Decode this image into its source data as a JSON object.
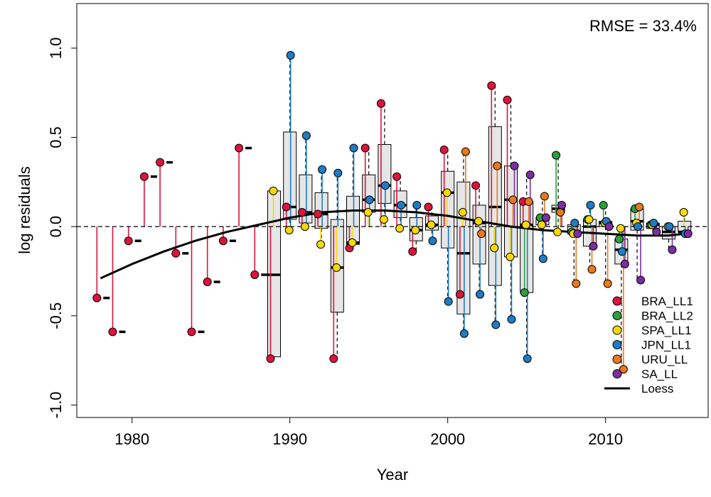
{
  "chart_data": {
    "type": "scatter",
    "title": "",
    "annotation": "RMSE = 33.4%",
    "xlabel": "Year",
    "ylabel": "log residuals",
    "xlim": [
      1976.5,
      2016.5
    ],
    "ylim": [
      -1.07,
      1.25
    ],
    "x_ticks": [
      1980,
      1990,
      2000,
      2010
    ],
    "y_ticks": [
      -1.0,
      -0.5,
      0.0,
      0.5,
      1.0
    ],
    "y_tick_labels": [
      "-1.0",
      "-0.5",
      "0.0",
      "0.5",
      "1.0"
    ],
    "zero_line": true,
    "legend_position": "bottom-right",
    "colors": {
      "BRA_LL1": "#dc143c",
      "BRA_LL2": "#2e9e3e",
      "SPA_LL1": "#f5d80b",
      "JPN_LL1": "#1f7cc4",
      "URU_LL": "#e8791e",
      "SA_LL": "#7b2ea0",
      "Loess": "#000000",
      "box_fill": "#e6e6e6"
    },
    "legend": [
      {
        "name": "BRA_LL1",
        "kind": "point"
      },
      {
        "name": "BRA_LL2",
        "kind": "point"
      },
      {
        "name": "SPA_LL1",
        "kind": "point"
      },
      {
        "name": "JPN_LL1",
        "kind": "point"
      },
      {
        "name": "URU_LL",
        "kind": "point"
      },
      {
        "name": "SA_LL",
        "kind": "point"
      },
      {
        "name": "Loess",
        "kind": "line"
      }
    ],
    "series": [
      {
        "name": "BRA_LL1",
        "x": [
          1978,
          1979,
          1980,
          1981,
          1982,
          1983,
          1984,
          1985,
          1986,
          1987,
          1988,
          1989,
          1990,
          1991,
          1992,
          1993,
          1994,
          1995,
          1996,
          1997,
          1998,
          1999,
          2000,
          2001,
          2002,
          2003,
          2004,
          2005
        ],
        "y": [
          -0.4,
          -0.59,
          -0.08,
          0.28,
          0.36,
          -0.15,
          -0.59,
          -0.31,
          -0.08,
          0.44,
          -0.27,
          -0.74,
          0.11,
          0.08,
          0.07,
          -0.74,
          -0.12,
          0.44,
          0.69,
          0.28,
          -0.14,
          0.11,
          0.43,
          -0.38,
          0.23,
          0.79,
          0.71,
          0.14
        ]
      },
      {
        "name": "BRA_LL2",
        "x": [
          2005,
          2006,
          2007,
          2008,
          2009,
          2010,
          2011,
          2012,
          2013
        ],
        "y": [
          -0.37,
          0.05,
          0.4,
          -0.03,
          0.04,
          0.12,
          -0.07,
          0.1,
          0.01
        ]
      },
      {
        "name": "SPA_LL1",
        "x": [
          1989,
          1990,
          1991,
          1992,
          1993,
          1994,
          1995,
          1996,
          1997,
          1998,
          1999,
          2000,
          2001,
          2002,
          2003,
          2004,
          2005,
          2006,
          2007,
          2008,
          2009,
          2010,
          2011,
          2012,
          2013,
          2014,
          2015
        ],
        "y": [
          0.2,
          -0.02,
          0.0,
          -0.1,
          -0.23,
          -0.09,
          0.08,
          0.04,
          -0.01,
          -0.02,
          0.01,
          0.19,
          0.08,
          0.03,
          -0.12,
          -0.17,
          0.01,
          0.01,
          -0.03,
          -0.04,
          0.04,
          0.02,
          -0.01,
          0.02,
          0.01,
          0.0,
          0.08
        ]
      },
      {
        "name": "JPN_LL1",
        "x": [
          1990,
          1991,
          1992,
          1993,
          1994,
          1995,
          1996,
          1997,
          1998,
          1999,
          2000,
          2001,
          2002,
          2003,
          2004,
          2005,
          2006,
          2008,
          2009,
          2010,
          2011,
          2012,
          2013,
          2014,
          2015
        ],
        "y": [
          0.96,
          0.51,
          0.32,
          0.3,
          0.44,
          0.15,
          0.23,
          0.12,
          0.12,
          -0.08,
          -0.42,
          -0.6,
          -0.38,
          -0.55,
          -0.52,
          -0.74,
          -0.18,
          0.02,
          0.12,
          0.03,
          -0.14,
          0.0,
          0.02,
          0.0,
          -0.04
        ]
      },
      {
        "name": "URU_LL",
        "x": [
          2001,
          2002,
          2003,
          2004,
          2005,
          2006,
          2007,
          2008,
          2009,
          2010,
          2011,
          2012
        ],
        "y": [
          0.42,
          -0.04,
          0.34,
          0.15,
          0.14,
          0.17,
          0.08,
          -0.32,
          -0.24,
          -0.32,
          -0.8,
          0.11
        ]
      },
      {
        "name": "SA_LL",
        "x": [
          2004,
          2005,
          2006,
          2007,
          2008,
          2009,
          2010,
          2011,
          2012,
          2013,
          2014,
          2015
        ],
        "y": [
          0.34,
          0.29,
          0.05,
          0.12,
          -0.04,
          -0.11,
          0.0,
          -0.21,
          -0.3,
          -0.03,
          -0.13,
          -0.04
        ]
      }
    ],
    "boxplots": [
      {
        "x": 1989,
        "q1": -0.73,
        "q3": 0.2,
        "median": -0.27
      },
      {
        "x": 1990,
        "q1": 0.04,
        "q3": 0.53,
        "median": 0.11
      },
      {
        "x": 1991,
        "q1": 0.02,
        "q3": 0.29,
        "median": 0.08
      },
      {
        "x": 1992,
        "q1": -0.01,
        "q3": 0.19,
        "median": 0.07
      },
      {
        "x": 1993,
        "q1": -0.48,
        "q3": 0.04,
        "median": -0.23
      },
      {
        "x": 1994,
        "q1": -0.1,
        "q3": 0.17,
        "median": -0.09
      },
      {
        "x": 1995,
        "q1": 0.08,
        "q3": 0.29,
        "median": 0.15
      },
      {
        "x": 1996,
        "q1": 0.13,
        "q3": 0.46,
        "median": 0.23
      },
      {
        "x": 1997,
        "q1": 0.05,
        "q3": 0.2,
        "median": 0.12
      },
      {
        "x": 1998,
        "q1": -0.08,
        "q3": 0.05,
        "median": -0.02
      },
      {
        "x": 1999,
        "q1": -0.02,
        "q3": 0.06,
        "median": 0.01
      },
      {
        "x": 2000,
        "q1": -0.12,
        "q3": 0.31,
        "median": 0.19
      },
      {
        "x": 2001,
        "q1": -0.49,
        "q3": 0.25,
        "median": -0.15
      },
      {
        "x": 2002,
        "q1": -0.21,
        "q3": 0.12,
        "median": 0.02
      },
      {
        "x": 2003,
        "q1": -0.33,
        "q3": 0.56,
        "median": 0.11
      },
      {
        "x": 2004,
        "q1": -0.17,
        "q3": 0.34,
        "median": 0.15
      },
      {
        "x": 2005,
        "q1": -0.37,
        "q3": 0.14,
        "median": 0.01
      },
      {
        "x": 2006,
        "q1": 0.01,
        "q3": 0.05,
        "median": 0.05
      },
      {
        "x": 2007,
        "q1": 0.08,
        "q3": 0.12,
        "median": 0.1
      },
      {
        "x": 2008,
        "q1": -0.04,
        "q3": 0.01,
        "median": -0.03
      },
      {
        "x": 2009,
        "q1": -0.11,
        "q3": 0.04,
        "median": 0.0
      },
      {
        "x": 2010,
        "q1": 0.0,
        "q3": 0.03,
        "median": 0.02
      },
      {
        "x": 2011,
        "q1": -0.21,
        "q3": -0.07,
        "median": -0.13
      },
      {
        "x": 2012,
        "q1": -0.02,
        "q3": 0.1,
        "median": 0.03
      },
      {
        "x": 2013,
        "q1": -0.01,
        "q3": 0.02,
        "median": 0.01
      },
      {
        "x": 2014,
        "q1": -0.07,
        "q3": 0.0,
        "median": -0.03
      },
      {
        "x": 2015,
        "q1": -0.03,
        "q3": 0.03,
        "median": -0.03
      }
    ],
    "loess": {
      "name": "Loess",
      "x": [
        1978,
        1980,
        1982,
        1984,
        1986,
        1988,
        1990,
        1992,
        1994,
        1996,
        1998,
        2000,
        2002,
        2004,
        2006,
        2008,
        2010,
        2012,
        2014,
        2015
      ],
      "y": [
        -0.29,
        -0.21,
        -0.14,
        -0.08,
        -0.03,
        0.01,
        0.05,
        0.08,
        0.09,
        0.09,
        0.08,
        0.06,
        0.03,
        0.0,
        -0.02,
        -0.03,
        -0.04,
        -0.05,
        -0.05,
        -0.04
      ]
    }
  }
}
